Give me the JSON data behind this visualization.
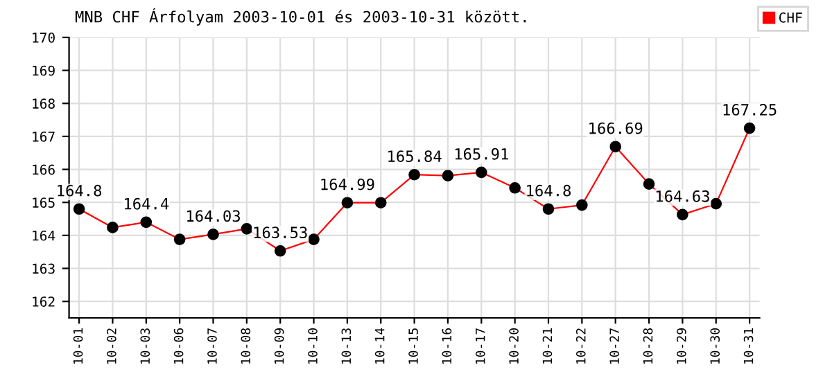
{
  "chart_data": {
    "type": "line",
    "title": "MNB CHF Árfolyam 2003-10-01 és 2003-10-31 között.",
    "categories": [
      "10-01",
      "10-02",
      "10-03",
      "10-06",
      "10-07",
      "10-08",
      "10-09",
      "10-10",
      "10-13",
      "10-14",
      "10-15",
      "10-16",
      "10-17",
      "10-20",
      "10-21",
      "10-22",
      "10-27",
      "10-28",
      "10-29",
      "10-30",
      "10-31"
    ],
    "series": [
      {
        "name": "CHF",
        "color": "#ff0000",
        "values": [
          164.8,
          164.24,
          164.4,
          163.88,
          164.03,
          164.2,
          163.53,
          163.88,
          164.99,
          164.99,
          165.84,
          165.81,
          165.91,
          165.44,
          164.8,
          164.92,
          166.69,
          165.56,
          164.63,
          164.96,
          167.25
        ],
        "value_labels": [
          "164.8",
          null,
          "164.4",
          null,
          "164.03",
          null,
          "163.53",
          null,
          "164.99",
          null,
          "165.84",
          null,
          "165.91",
          null,
          "164.8",
          null,
          "166.69",
          null,
          "164.63",
          null,
          "167.25"
        ]
      }
    ],
    "ylim": [
      161.5,
      170
    ],
    "yticks": [
      162,
      163,
      164,
      165,
      166,
      167,
      168,
      169,
      170
    ],
    "grid": true,
    "legend": "top right",
    "marker": "circle",
    "line_style": "solid"
  }
}
